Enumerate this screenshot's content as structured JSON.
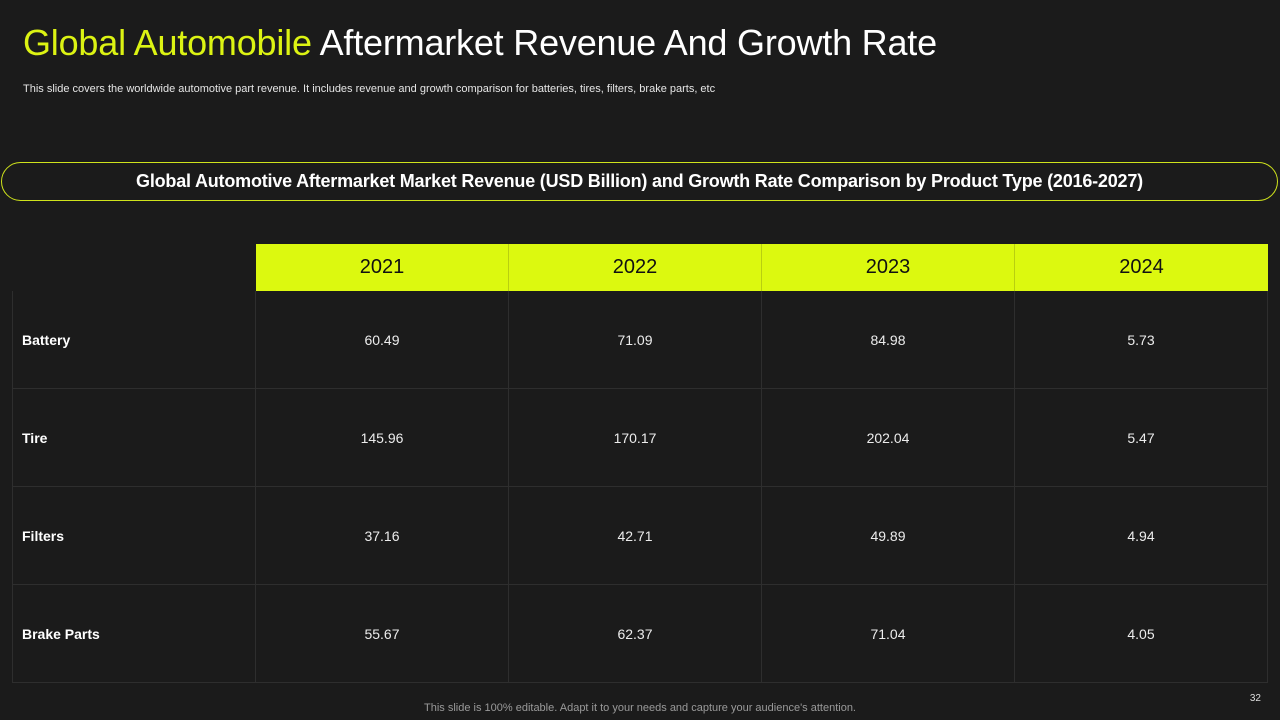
{
  "title": {
    "accent": "Global Automobile",
    "rest": "Aftermarket Revenue And Growth Rate"
  },
  "subtitle": "This slide covers the worldwide automotive part revenue. It includes revenue and growth comparison for batteries, tires, filters, brake parts, etc",
  "banner": "Global Automotive Aftermarket Market Revenue (USD Billion) and Growth Rate Comparison by Product Type (2016-2027)",
  "table": {
    "columns": [
      "2021",
      "2022",
      "2023",
      "2024"
    ],
    "rows": [
      {
        "label": "Battery",
        "values": [
          "60.49",
          "71.09",
          "84.98",
          "5.73"
        ]
      },
      {
        "label": "Tire",
        "values": [
          "145.96",
          "170.17",
          "202.04",
          "5.47"
        ]
      },
      {
        "label": "Filters",
        "values": [
          "37.16",
          "42.71",
          "49.89",
          "4.94"
        ]
      },
      {
        "label": "Brake Parts",
        "values": [
          "55.67",
          "62.37",
          "71.04",
          "4.05"
        ]
      }
    ]
  },
  "footer": "This slide is 100% editable. Adapt it to your needs and capture your audience's attention.",
  "page_number": "32",
  "colors": {
    "accent": "#dcf313",
    "header_fill": "#dcf90f",
    "background": "#1b1b1b"
  }
}
